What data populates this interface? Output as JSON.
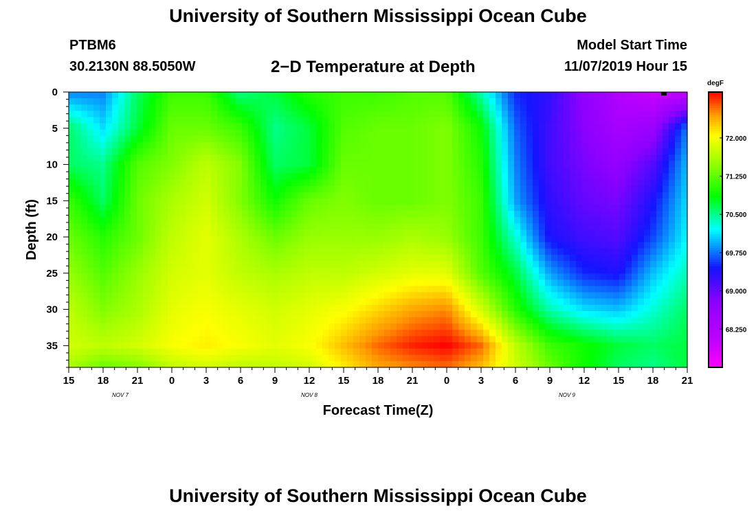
{
  "header": {
    "title_top": "University of Southern Mississippi Ocean Cube",
    "title_bottom": "University of Southern Mississippi Ocean Cube",
    "station_id": "PTBM6",
    "station_coords": "30.2130N 88.5050W",
    "plot_title": "2−D Temperature at Depth",
    "run_label": "Model Start Time",
    "run_time": "11/07/2019 Hour 15"
  },
  "chart_data": {
    "type": "heatmap",
    "title": "2−D Temperature at Depth",
    "xlabel": "Forecast Time(Z)",
    "ylabel": "Depth (ft)",
    "x_ticks": [
      "15",
      "18",
      "21",
      "0",
      "3",
      "6",
      "9",
      "12",
      "15",
      "18",
      "21",
      "0",
      "3",
      "6",
      "9",
      "12",
      "15",
      "18",
      "21"
    ],
    "x_range_hours_from_start": [
      0,
      54
    ],
    "date_labels": [
      {
        "text": "NOV  7",
        "hour": 4.5
      },
      {
        "text": "NOV  8",
        "hour": 21
      },
      {
        "text": "NOV  9",
        "hour": 43.5
      }
    ],
    "y_ticks": [
      "0",
      "5",
      "10",
      "15",
      "20",
      "25",
      "30",
      "35"
    ],
    "ylim": [
      38,
      0
    ],
    "colorbar": {
      "unit": "degF",
      "range": [
        67.5,
        72.9
      ],
      "ticks": [
        "72.000",
        "71.250",
        "70.500",
        "69.750",
        "69.000",
        "68.250"
      ],
      "tick_values": [
        72.0,
        71.25,
        70.5,
        69.75,
        69.0,
        68.25
      ]
    },
    "grid_x_hours": [
      0,
      3,
      6,
      9,
      12,
      15,
      18,
      21,
      24,
      27,
      30,
      33,
      36,
      39,
      42,
      45,
      48,
      51,
      54
    ],
    "grid_depths_ft": [
      0,
      5,
      10,
      15,
      20,
      25,
      30,
      35,
      38
    ],
    "temperatures_degF": [
      [
        69.8,
        69.8,
        70.6,
        71.1,
        71.1,
        70.5,
        70.7,
        71.0,
        71.1,
        71.1,
        71.2,
        71.2,
        70.4,
        69.5,
        69.3,
        68.7,
        68.2,
        67.9,
        68.0
      ],
      [
        70.6,
        70.1,
        70.7,
        71.3,
        71.3,
        71.1,
        70.5,
        70.7,
        71.2,
        71.3,
        71.3,
        71.4,
        70.9,
        69.7,
        69.2,
        68.8,
        68.4,
        68.6,
        69.8
      ],
      [
        70.6,
        70.5,
        71.2,
        71.4,
        71.7,
        71.4,
        70.6,
        70.7,
        71.3,
        71.3,
        71.3,
        71.4,
        71.0,
        69.8,
        69.2,
        68.9,
        68.7,
        69.1,
        70.0
      ],
      [
        71.1,
        70.6,
        71.3,
        71.6,
        71.8,
        71.4,
        70.9,
        71.3,
        71.4,
        71.3,
        71.3,
        71.4,
        71.1,
        69.9,
        69.3,
        69.0,
        68.9,
        69.4,
        70.1
      ],
      [
        71.3,
        71.0,
        71.3,
        71.7,
        71.9,
        71.6,
        71.3,
        71.5,
        71.5,
        71.5,
        71.6,
        71.5,
        71.1,
        70.3,
        69.4,
        69.2,
        69.1,
        69.6,
        70.2
      ],
      [
        71.5,
        71.2,
        71.5,
        71.8,
        71.9,
        71.7,
        71.6,
        71.7,
        71.7,
        71.8,
        71.9,
        71.9,
        71.2,
        70.7,
        69.9,
        69.5,
        69.4,
        70.0,
        70.4
      ],
      [
        71.7,
        71.4,
        71.6,
        71.9,
        72.0,
        71.9,
        71.8,
        71.9,
        72.0,
        72.2,
        72.4,
        72.5,
        71.8,
        71.0,
        70.4,
        70.1,
        70.0,
        70.3,
        70.6
      ],
      [
        71.8,
        71.7,
        71.8,
        72.0,
        72.1,
        72.0,
        71.9,
        72.0,
        72.3,
        72.6,
        72.8,
        72.9,
        72.6,
        71.7,
        71.1,
        70.9,
        70.7,
        70.6,
        70.7
      ],
      [
        71.6,
        71.3,
        71.4,
        71.7,
        71.8,
        71.7,
        71.7,
        71.8,
        72.1,
        72.4,
        72.5,
        72.6,
        72.3,
        71.8,
        71.3,
        70.9,
        70.6,
        70.5,
        70.7
      ]
    ]
  }
}
